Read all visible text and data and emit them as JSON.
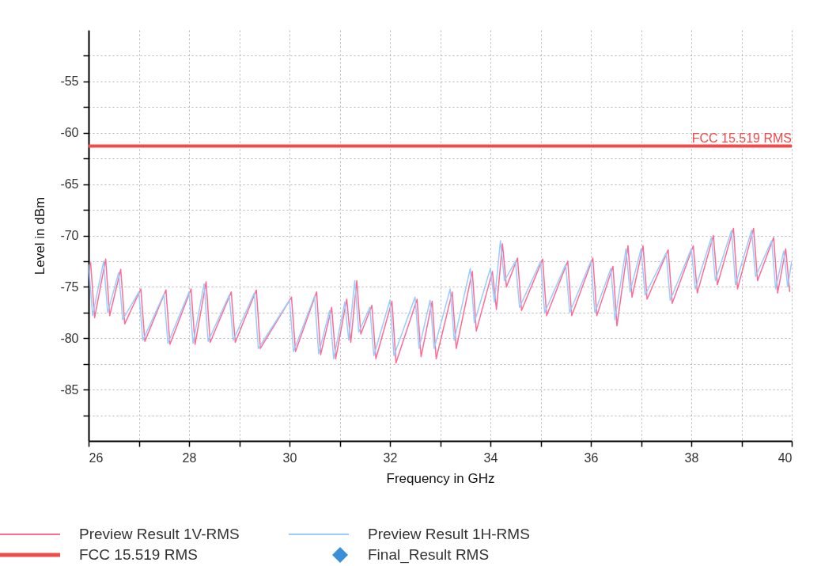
{
  "chart_data": {
    "type": "line",
    "xlabel": "Frequency in GHz",
    "ylabel": "Level in dBm",
    "xlim": [
      26,
      40
    ],
    "xticks": [
      26,
      {
        "value": 27,
        "label": null
      },
      28,
      {
        "value": 29,
        "label": null
      },
      30,
      {
        "value": 31,
        "label": null
      },
      32,
      {
        "value": 33,
        "label": null
      },
      34,
      {
        "value": 35,
        "label": null
      },
      36,
      {
        "value": 37,
        "label": null
      },
      38,
      {
        "value": 39,
        "label": null
      },
      40
    ],
    "ylim": [
      -90,
      -50
    ],
    "yticks": [
      {
        "value": -87.5,
        "label": null
      },
      -85,
      {
        "value": -82.5,
        "label": null
      },
      -80,
      {
        "value": -77.5,
        "label": null
      },
      -75,
      {
        "value": -72.5,
        "label": null
      },
      -70,
      {
        "value": -67.5,
        "label": null
      },
      -65,
      {
        "value": -62.5,
        "label": null
      },
      -60,
      {
        "value": -57.5,
        "label": null
      },
      -55,
      {
        "value": -52.5,
        "label": null
      }
    ],
    "grid": true,
    "legend": "bottom",
    "series": [
      {
        "name": "Preview Result 1V-RMS",
        "color": "#ff6b95",
        "x": [
          26.04,
          26.12,
          26.34,
          26.42,
          26.64,
          26.72,
          27.04,
          27.12,
          27.54,
          27.62,
          28.04,
          28.12,
          28.34,
          28.42,
          28.84,
          28.92,
          29.34,
          29.42,
          30.04,
          30.12,
          30.54,
          30.62,
          30.84,
          30.92,
          31.14,
          31.22,
          31.34,
          31.42,
          31.64,
          31.72,
          32.04,
          32.12,
          32.54,
          32.62,
          32.84,
          32.92,
          33.24,
          33.32,
          33.64,
          33.72,
          34.04,
          34.12,
          34.24,
          34.32,
          34.54,
          34.62,
          35.04,
          35.12,
          35.54,
          35.62,
          36.04,
          36.12,
          36.44,
          36.52,
          36.74,
          36.82,
          37.04,
          37.12,
          37.54,
          37.62,
          38.04,
          38.12,
          38.44,
          38.52,
          38.84,
          38.92,
          39.24,
          39.32,
          39.64,
          39.72,
          39.88,
          39.96
        ],
        "values": [
          -72.6,
          -78.0,
          -72.3,
          -77.8,
          -73.3,
          -78.6,
          -75.2,
          -80.3,
          -75.3,
          -80.6,
          -75.2,
          -80.6,
          -74.5,
          -80.4,
          -75.5,
          -80.4,
          -75.3,
          -81.0,
          -76.0,
          -81.3,
          -75.5,
          -81.6,
          -77.0,
          -82.0,
          -76.2,
          -80.4,
          -74.4,
          -79.6,
          -76.8,
          -82.0,
          -76.4,
          -82.4,
          -76.2,
          -81.8,
          -76.4,
          -82.0,
          -75.5,
          -81.0,
          -73.5,
          -79.3,
          -73.5,
          -77.2,
          -70.8,
          -75.0,
          -72.2,
          -77.3,
          -72.3,
          -77.8,
          -72.5,
          -77.8,
          -72.2,
          -77.8,
          -73.0,
          -78.8,
          -71.0,
          -76.0,
          -71.0,
          -76.2,
          -71.4,
          -76.6,
          -71.0,
          -75.6,
          -70.0,
          -74.8,
          -69.3,
          -75.2,
          -69.3,
          -74.4,
          -70.2,
          -75.6,
          -71.3,
          -75.5
        ]
      },
      {
        "name": "Preview Result 1H-RMS",
        "color": "#99ccff",
        "x": [
          26.0,
          26.08,
          26.3,
          26.38,
          26.6,
          26.68,
          27.0,
          27.08,
          27.5,
          27.58,
          28.0,
          28.08,
          28.3,
          28.38,
          28.8,
          28.88,
          29.3,
          29.38,
          30.0,
          30.08,
          30.5,
          30.58,
          30.8,
          30.88,
          31.1,
          31.18,
          31.3,
          31.38,
          31.6,
          31.68,
          32.0,
          32.08,
          32.5,
          32.58,
          32.8,
          32.88,
          33.2,
          33.28,
          33.6,
          33.68,
          34.0,
          34.08,
          34.2,
          34.28,
          34.5,
          34.58,
          35.0,
          35.08,
          35.5,
          35.58,
          36.0,
          36.08,
          36.4,
          36.48,
          36.7,
          36.78,
          37.0,
          37.08,
          37.5,
          37.58,
          38.0,
          38.08,
          38.4,
          38.48,
          38.8,
          38.88,
          39.2,
          39.28,
          39.6,
          39.68,
          39.84,
          39.92,
          40.0
        ],
        "values": [
          -72.8,
          -77.8,
          -72.5,
          -77.5,
          -73.6,
          -78.2,
          -75.5,
          -80.2,
          -75.7,
          -80.5,
          -75.5,
          -80.5,
          -74.7,
          -80.3,
          -75.8,
          -80.2,
          -75.6,
          -81.0,
          -76.3,
          -81.3,
          -75.9,
          -81.5,
          -77.3,
          -82.0,
          -76.5,
          -80.2,
          -74.4,
          -79.4,
          -77.0,
          -81.7,
          -76.3,
          -81.7,
          -76.0,
          -81.0,
          -76.3,
          -81.0,
          -75.2,
          -80.2,
          -73.2,
          -78.5,
          -73.2,
          -76.5,
          -70.5,
          -74.4,
          -72.5,
          -77.0,
          -72.5,
          -77.5,
          -72.8,
          -77.5,
          -72.5,
          -77.5,
          -73.2,
          -78.2,
          -71.3,
          -75.5,
          -71.3,
          -75.8,
          -71.7,
          -76.3,
          -71.3,
          -75.2,
          -70.2,
          -74.4,
          -69.5,
          -74.8,
          -69.5,
          -74.0,
          -70.5,
          -75.2,
          -71.5,
          -75.0,
          -72.5
        ]
      },
      {
        "name": "Final_Result RMS",
        "type": "scatter",
        "marker": "diamond",
        "color": "#3a8fd8"
      }
    ],
    "ref_lines": [
      {
        "axis": "y",
        "value": -61.3,
        "label": "FCC 15.519 RMS",
        "color": "#f04a4a"
      }
    ]
  }
}
